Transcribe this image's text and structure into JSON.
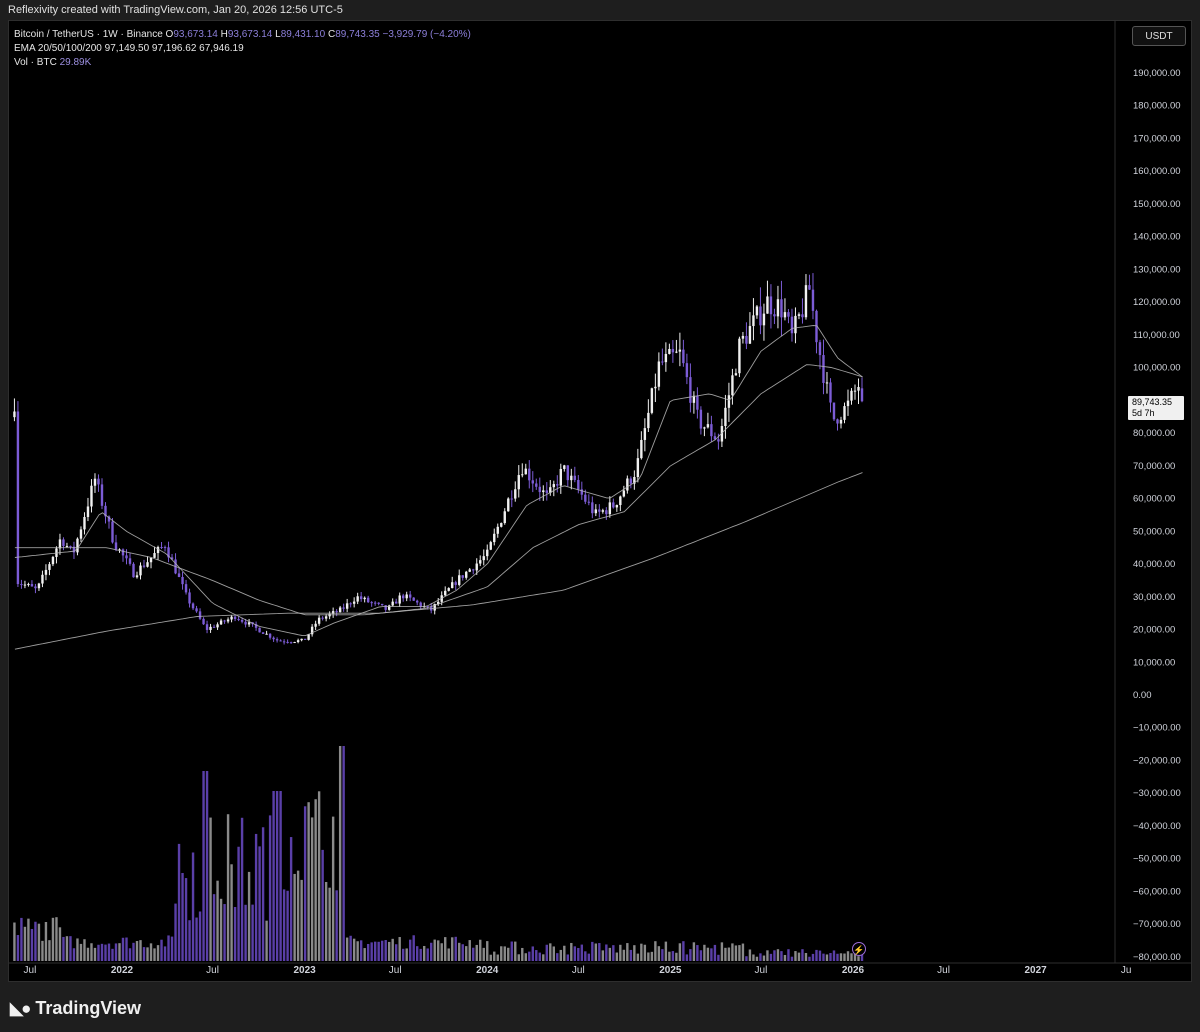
{
  "header": {
    "attribution": "Reflexivity created with TradingView.com, Jan 20, 2026 12:56 UTC-5"
  },
  "legend": {
    "symbol": "Bitcoin / TetherUS · 1W · Binance",
    "o_label": "O",
    "o_value": "93,673.14",
    "h_label": "H",
    "h_value": "93,673.14",
    "l_label": "L",
    "l_value": "89,431.10",
    "c_label": "C",
    "c_value": "89,743.35",
    "change": "−3,929.79 (−4.20%)",
    "ema_label": "EMA 20/50/100/200",
    "ema_values": "97,149.50  97,196.62  67,946.19",
    "vol_label": "Vol · BTC",
    "vol_value": "29.89K"
  },
  "currency_button": "USDT",
  "last_price": {
    "price": "89,743.35",
    "countdown": "5d 7h"
  },
  "footer": {
    "brand": "TradingView",
    "logo_icon": "tradingview-logo-icon"
  },
  "colors": {
    "background": "#000000",
    "up_candle": "#f0f0f0",
    "down_candle": "#7c5cd6",
    "ema": "#b8b8b8",
    "up_volume": "#8a8a8a",
    "down_volume": "#5a3fa8"
  },
  "chart_data": {
    "type": "candlestick",
    "x_ticks": [
      "Jul",
      "2022",
      "Jul",
      "2023",
      "Jul",
      "2024",
      "Jul",
      "2025",
      "Jul",
      "2026",
      "Jul",
      "2027",
      "Ju"
    ],
    "y_ticks": [
      "190,000.00",
      "180,000.00",
      "170,000.00",
      "160,000.00",
      "150,000.00",
      "140,000.00",
      "130,000.00",
      "120,000.00",
      "110,000.00",
      "100,000.00",
      "90,000.00",
      "80,000.00",
      "70,000.00",
      "60,000.00",
      "50,000.00",
      "40,000.00",
      "30,000.00",
      "20,000.00",
      "10,000.00",
      "0.00",
      "−10,000.00",
      "−20,000.00",
      "−30,000.00",
      "−40,000.00",
      "−50,000.00",
      "−60,000.00",
      "−70,000.00",
      "−80,000.00"
    ],
    "ylim": [
      -80000,
      190000
    ],
    "price_anchors": [
      [
        "2021-06-01",
        35000
      ],
      [
        "2021-07-15",
        32000
      ],
      [
        "2021-09-01",
        48000
      ],
      [
        "2021-09-25",
        43000
      ],
      [
        "2021-11-08",
        66000
      ],
      [
        "2021-12-15",
        47000
      ],
      [
        "2022-01-25",
        37000
      ],
      [
        "2022-03-28",
        46000
      ],
      [
        "2022-05-10",
        30000
      ],
      [
        "2022-06-18",
        20000
      ],
      [
        "2022-08-15",
        24000
      ],
      [
        "2022-11-10",
        16500
      ],
      [
        "2022-12-31",
        16600
      ],
      [
        "2023-01-28",
        23000
      ],
      [
        "2023-03-15",
        26000
      ],
      [
        "2023-04-15",
        30000
      ],
      [
        "2023-06-15",
        26000
      ],
      [
        "2023-07-15",
        30500
      ],
      [
        "2023-09-10",
        25800
      ],
      [
        "2023-11-01",
        35000
      ],
      [
        "2024-01-01",
        43000
      ],
      [
        "2024-03-10",
        70000
      ],
      [
        "2024-05-01",
        60000
      ],
      [
        "2024-06-01",
        69000
      ],
      [
        "2024-08-05",
        55000
      ],
      [
        "2024-09-10",
        58000
      ],
      [
        "2024-10-25",
        69000
      ],
      [
        "2024-12-10",
        101000
      ],
      [
        "2025-01-20",
        104000
      ],
      [
        "2025-02-25",
        84000
      ],
      [
        "2025-04-08",
        78000
      ],
      [
        "2025-05-20",
        107000
      ],
      [
        "2025-07-14",
        120000
      ],
      [
        "2025-08-14",
        118000
      ],
      [
        "2025-09-01",
        109000
      ],
      [
        "2025-10-06",
        124000
      ],
      [
        "2025-10-20",
        110000
      ],
      [
        "2025-11-21",
        84000
      ],
      [
        "2025-12-20",
        88000
      ],
      [
        "2026-01-13",
        95000
      ],
      [
        "2026-01-20",
        89743
      ]
    ],
    "ema_anchors": {
      "ema20": [
        [
          "2021-06-01",
          42000
        ],
        [
          "2021-10-01",
          44000
        ],
        [
          "2021-11-20",
          56000
        ],
        [
          "2022-01-10",
          50000
        ],
        [
          "2022-04-01",
          43000
        ],
        [
          "2022-07-01",
          28000
        ],
        [
          "2022-10-01",
          21000
        ],
        [
          "2023-01-01",
          18000
        ],
        [
          "2023-03-01",
          22000
        ],
        [
          "2023-06-01",
          27000
        ],
        [
          "2023-09-01",
          27000
        ],
        [
          "2023-11-01",
          32000
        ],
        [
          "2024-01-01",
          40000
        ],
        [
          "2024-03-20",
          58000
        ],
        [
          "2024-06-01",
          64000
        ],
        [
          "2024-09-01",
          60000
        ],
        [
          "2024-11-01",
          66000
        ],
        [
          "2025-01-01",
          90000
        ],
        [
          "2025-03-20",
          92000
        ],
        [
          "2025-05-01",
          90000
        ],
        [
          "2025-07-01",
          105000
        ],
        [
          "2025-09-01",
          112000
        ],
        [
          "2025-10-20",
          113000
        ],
        [
          "2025-12-01",
          103000
        ],
        [
          "2026-01-20",
          97150
        ]
      ],
      "ema50": [
        [
          "2021-06-01",
          45000
        ],
        [
          "2021-12-01",
          45000
        ],
        [
          "2022-03-01",
          42000
        ],
        [
          "2022-07-01",
          35000
        ],
        [
          "2022-10-01",
          29000
        ],
        [
          "2023-01-01",
          24500
        ],
        [
          "2023-05-01",
          24500
        ],
        [
          "2023-09-01",
          26500
        ],
        [
          "2024-01-01",
          33000
        ],
        [
          "2024-04-01",
          45000
        ],
        [
          "2024-07-01",
          52000
        ],
        [
          "2024-10-01",
          56000
        ],
        [
          "2025-01-01",
          70000
        ],
        [
          "2025-04-01",
          78000
        ],
        [
          "2025-07-01",
          92000
        ],
        [
          "2025-10-01",
          101000
        ],
        [
          "2025-11-20",
          100000
        ],
        [
          "2026-01-20",
          97197
        ]
      ],
      "ema200": [
        [
          "2021-06-01",
          14000
        ],
        [
          "2021-12-01",
          19500
        ],
        [
          "2022-06-01",
          24000
        ],
        [
          "2022-12-01",
          25000
        ],
        [
          "2023-06-01",
          25000
        ],
        [
          "2023-12-01",
          27500
        ],
        [
          "2024-06-01",
          32000
        ],
        [
          "2024-12-01",
          42000
        ],
        [
          "2025-06-01",
          53000
        ],
        [
          "2025-12-01",
          65000
        ],
        [
          "2026-01-20",
          67946
        ]
      ]
    },
    "volume_note": "volume bars at bottom of pane; tallest spikes late 2022 and early 2023"
  }
}
